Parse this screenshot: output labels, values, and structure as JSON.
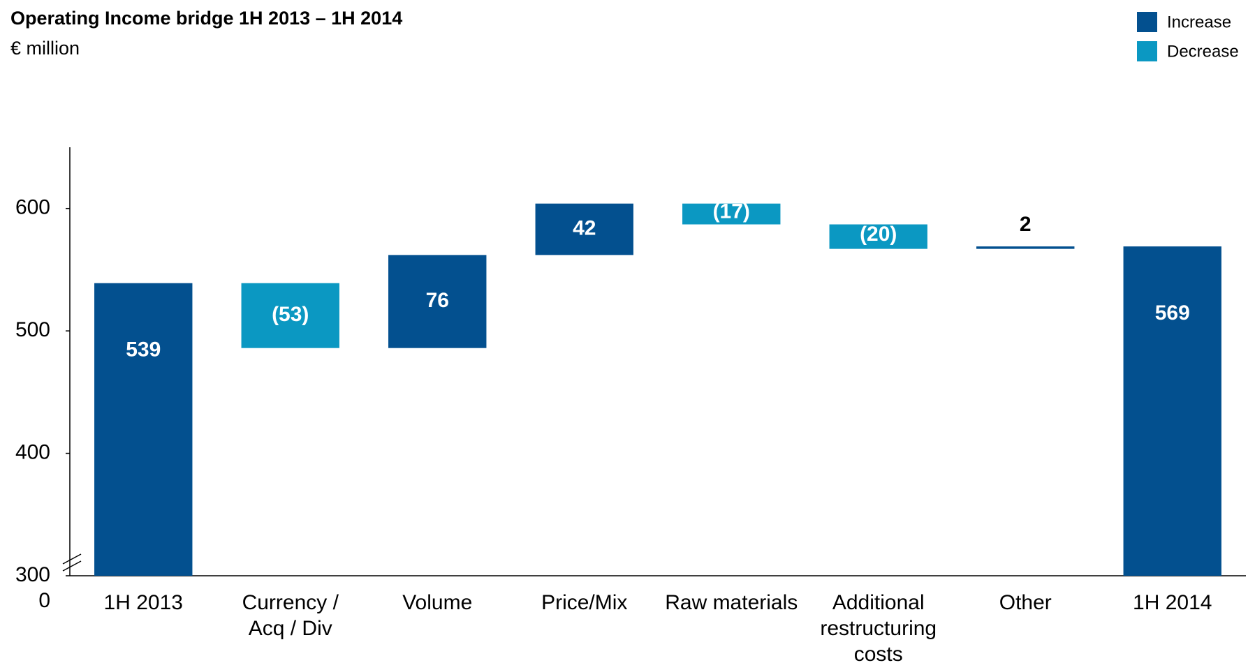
{
  "chart_data": {
    "type": "waterfall",
    "title": "Operating Income bridge 1H 2013 – 1H 2014",
    "subtitle": "€ million",
    "categories": [
      "1H 2013",
      "Currency /\nAcq / Div",
      "Volume",
      "Price/Mix",
      "Raw materials",
      "Additional\nrestructuring\ncosts",
      "Other",
      "1H 2014"
    ],
    "values": [
      539,
      -53,
      76,
      42,
      -17,
      -20,
      2,
      569
    ],
    "value_labels": [
      "539",
      "(53)",
      "76",
      "42",
      "(17)",
      "(20)",
      "2",
      "569"
    ],
    "legend": [
      {
        "name": "Increase",
        "color": "#03508f"
      },
      {
        "name": "Decrease",
        "color": "#0b98c2"
      }
    ],
    "ylim": [
      300,
      650
    ],
    "yticks": [
      300,
      400,
      500,
      600
    ],
    "ybreak": 0
  }
}
